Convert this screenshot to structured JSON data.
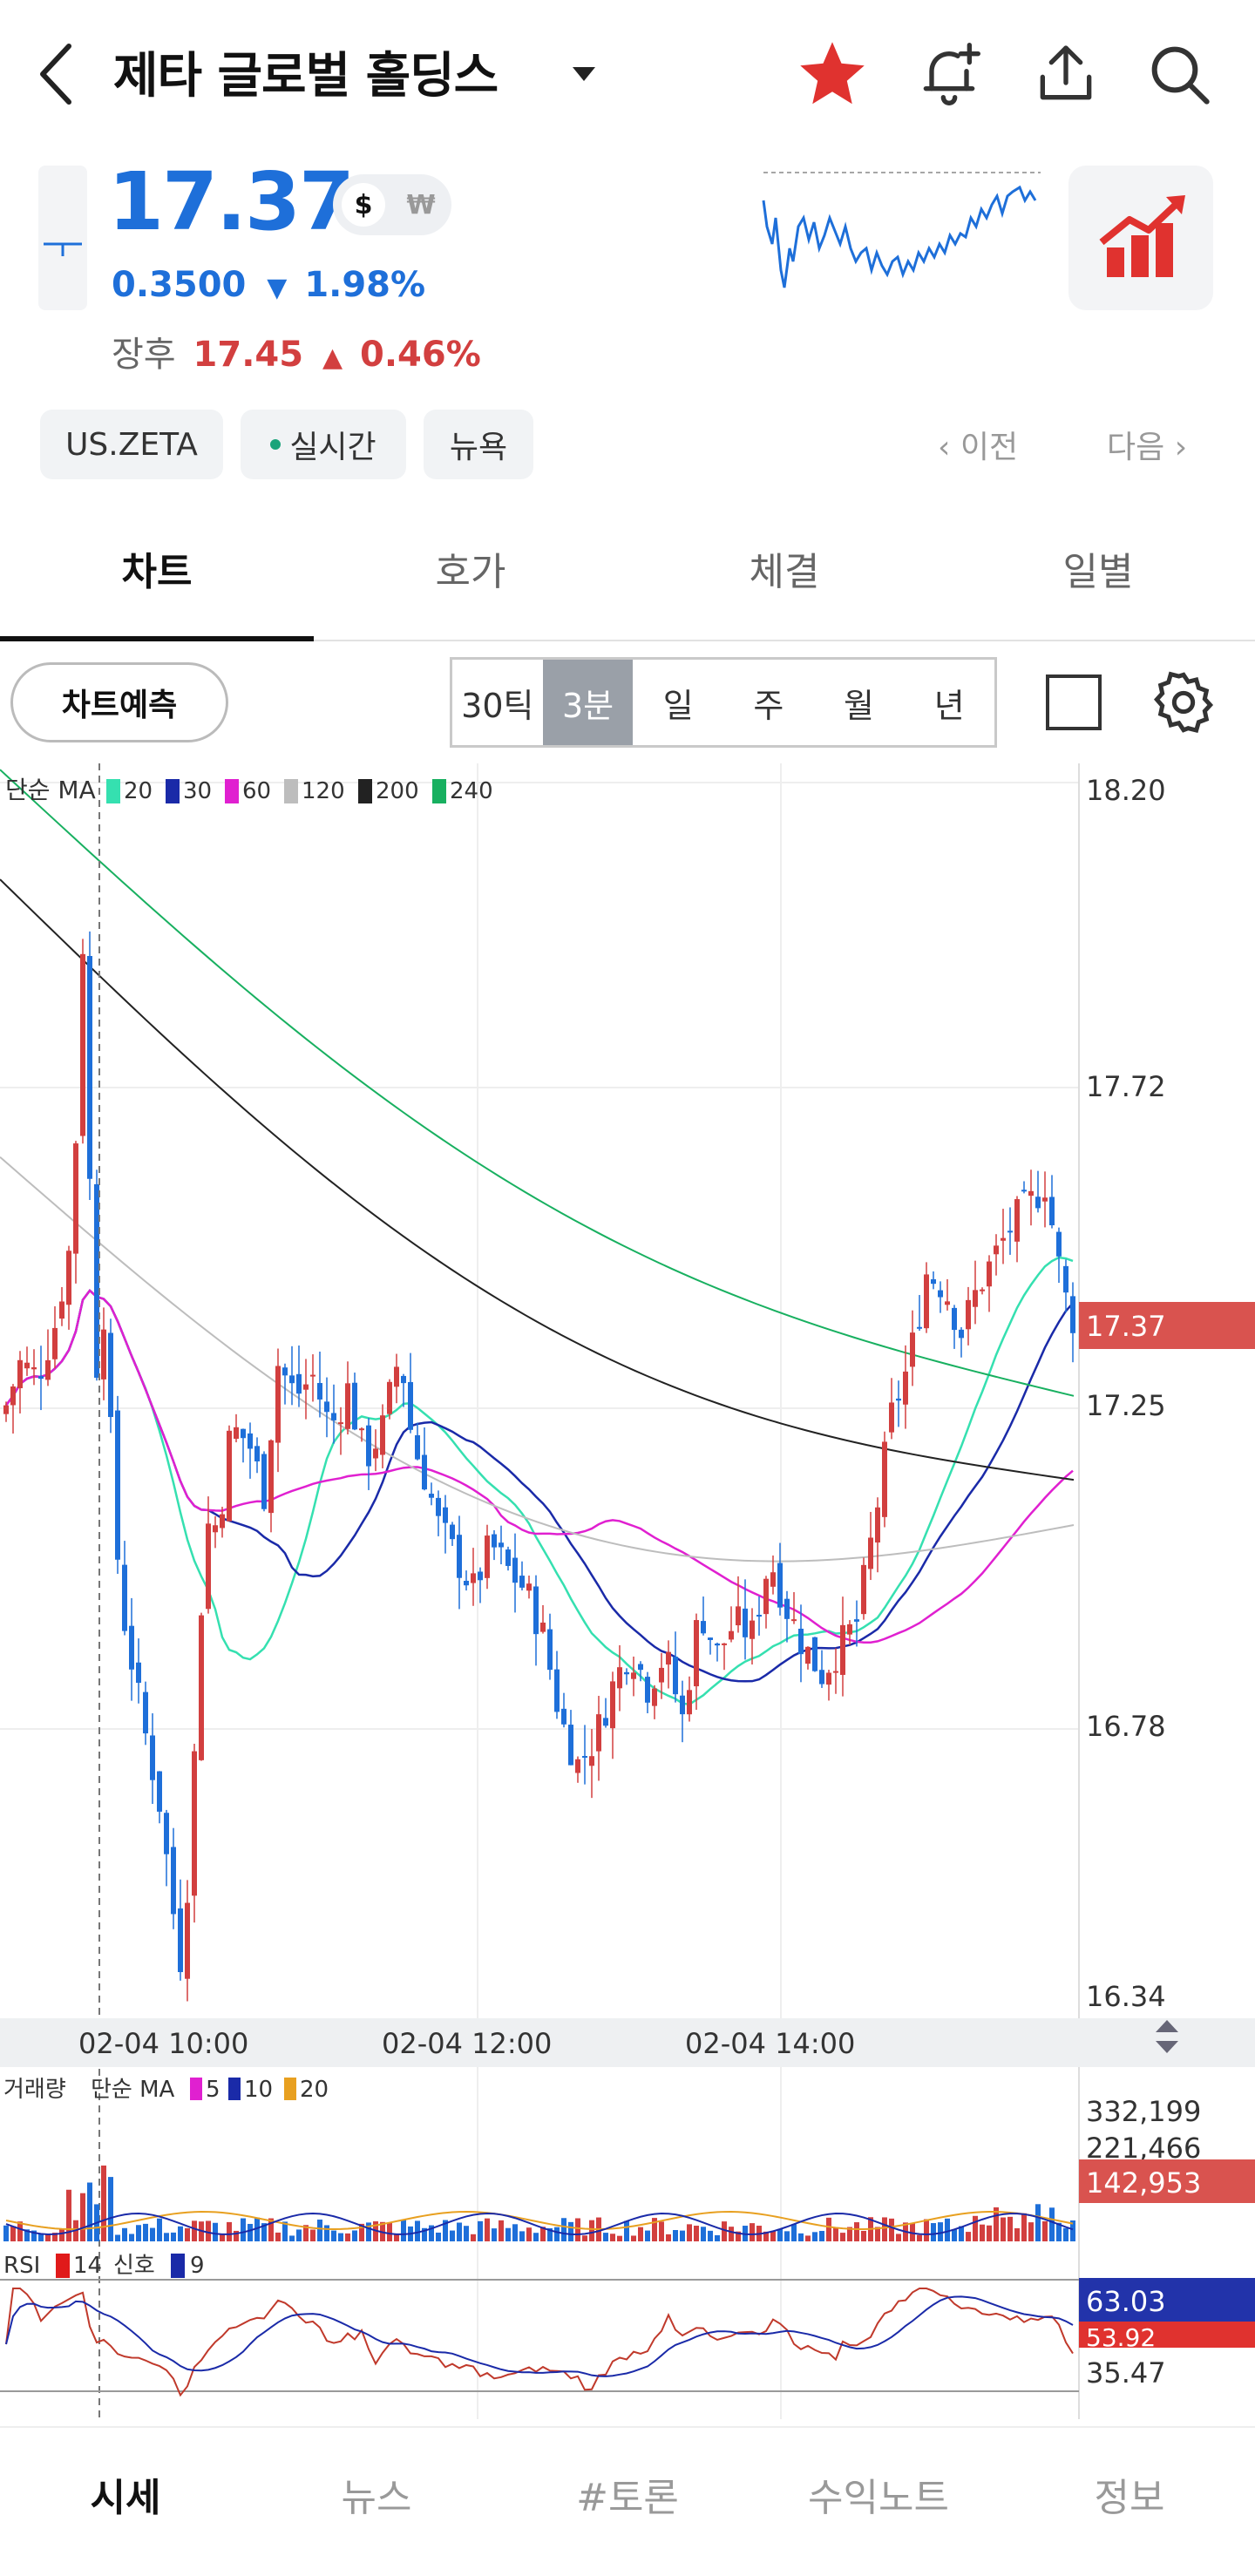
{
  "header": {
    "title": "제타 글로벌 홀딩스"
  },
  "quote": {
    "price": "17.37",
    "currency_usd": "$",
    "currency_krw": "₩",
    "change_abs": "0.3500",
    "change_pct": "1.98%",
    "after_label": "장후",
    "after_price": "17.45",
    "after_pct": "0.46%"
  },
  "chips": {
    "ticker": "US.ZETA",
    "realtime": "실시간",
    "exchange": "뉴욕",
    "prev": "이전",
    "next": "다음"
  },
  "tabs": [
    "차트",
    "호가",
    "체결",
    "일별"
  ],
  "toolbar": {
    "predict": "차트예측",
    "periods": [
      "30틱",
      "3분",
      "일",
      "주",
      "월",
      "년"
    ],
    "active_period": "3분"
  },
  "chart_labels": {
    "ma_label": "단순 MA",
    "ma_periods": [
      "20",
      "30",
      "60",
      "120",
      "200",
      "240"
    ],
    "ma_colors": [
      "#35e0b0",
      "#1a2aa8",
      "#e020d0",
      "#bdbdbd",
      "#222222",
      "#18b060"
    ],
    "y_ticks": [
      "18.20",
      "17.72",
      "17.25",
      "16.78",
      "16.34"
    ],
    "current_price_tag": "17.37",
    "x_ticks": [
      "02-04 10:00",
      "02-04 12:00",
      "02-04 14:00"
    ],
    "volume_label": "거래량",
    "volume_ma_label": "단순 MA",
    "volume_ma_periods": [
      "5",
      "10",
      "20"
    ],
    "volume_ticks": [
      "332,199",
      "221,466"
    ],
    "volume_tag": "142,953",
    "rsi_label": "RSI",
    "rsi_period": "14",
    "rsi_signal_label": "신호",
    "rsi_signal_period": "9",
    "rsi_tag": "63.03",
    "rsi_tag2": "53.92",
    "rsi_tick": "35.47"
  },
  "chart_data": {
    "type": "candlestick",
    "interval": "3분",
    "ylim": [
      16.34,
      18.2
    ],
    "last_price": 17.37,
    "x_ticks": [
      "02-04 10:00",
      "02-04 12:00",
      "02-04 14:00"
    ]
  },
  "bottom_nav": [
    "시세",
    "뉴스",
    "#토론",
    "수익노트",
    "정보"
  ],
  "colors": {
    "up": "#d23f3f",
    "down": "#1e6fd9",
    "accent": "#e53935"
  }
}
